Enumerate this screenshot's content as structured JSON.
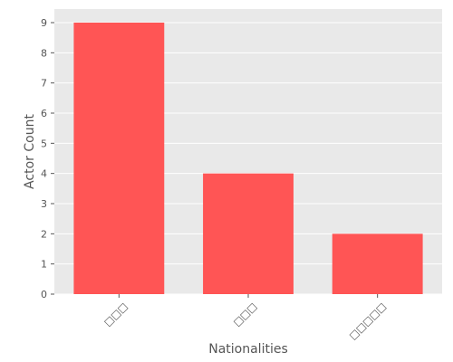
{
  "chart_data": {
    "type": "bar",
    "title": "",
    "xlabel": "Nationalities",
    "ylabel": "Actor Count",
    "categories": [
      "□□□",
      "□□□",
      "□□□□□"
    ],
    "values": [
      9,
      4,
      2
    ],
    "ylim": [
      0,
      9.45
    ],
    "yticks": [
      0,
      1,
      2,
      3,
      4,
      5,
      6,
      7,
      8,
      9
    ],
    "grid": true,
    "bar_color": "#ff5555",
    "plot_background": "#e9e9e9",
    "grid_color": "#ffffff"
  }
}
